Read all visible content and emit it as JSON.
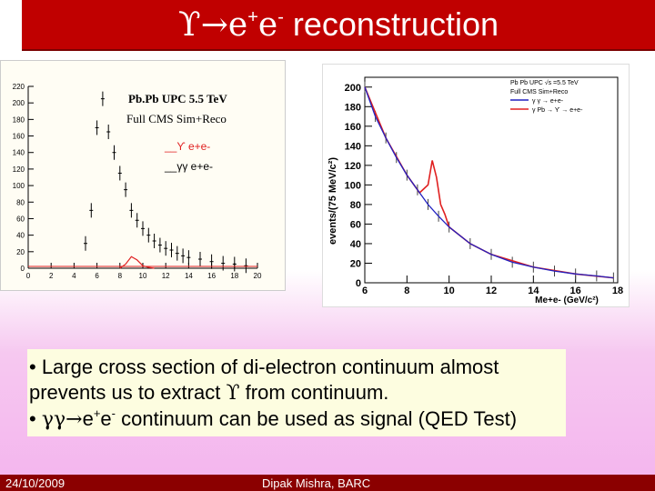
{
  "slide": {
    "title": {
      "symbol_upsilon": "ϒ",
      "arrow": "→",
      "e_plus_base": "e",
      "e_plus_sup": "+",
      "e_minus_base": "e",
      "e_minus_sup": "-",
      "word": "reconstruction"
    },
    "bullets": {
      "line1": "• Large cross section of di-electron continuum almost",
      "line2_pre": "prevents us to extract ",
      "line2_sym": "ϒ",
      "line2_post": " from continuum.",
      "line3_bullet": "• ",
      "line3_gg": "γγ",
      "line3_arrow": "→",
      "line3_e1": "e",
      "line3_sup1": "+",
      "line3_e2": "e",
      "line3_sup2": "-",
      "line3_post": " continuum can be used as signal (QED Test)"
    },
    "footer": {
      "date": "24/10/2009",
      "author": "Dipak Mishra, BARC"
    },
    "colors": {
      "title_bar": "#c00000",
      "footer_bar": "#8b0000",
      "upsilon_curve": "#e02020",
      "gg_curve": "#2020c0"
    }
  },
  "chart_data": [
    {
      "type": "bar",
      "title": "Pb.Pb UPC 5.5 TeV",
      "subtitle": "Full CMS Sim+Reco",
      "legend": [
        "__ϒ e+e-",
        "__γγ e+e-"
      ],
      "xlim": [
        0,
        20
      ],
      "ylim": [
        0,
        220
      ],
      "xticks": [
        0,
        2,
        4,
        6,
        8,
        10,
        12,
        14,
        16,
        18,
        20
      ],
      "yticks": [
        0,
        20,
        40,
        60,
        80,
        100,
        120,
        140,
        160,
        180,
        200,
        220
      ],
      "series": [
        {
          "name": "γγ e+e-",
          "x": [
            5,
            5.5,
            6,
            6.5,
            7,
            7.5,
            8,
            8.5,
            9,
            9.5,
            10,
            10.5,
            11,
            11.5,
            12,
            12.5,
            13,
            13.5,
            14,
            15,
            16,
            17,
            18,
            19
          ],
          "values": [
            30,
            70,
            170,
            205,
            165,
            140,
            115,
            95,
            70,
            58,
            48,
            40,
            33,
            28,
            24,
            22,
            18,
            15,
            13,
            11,
            8,
            6,
            5,
            3
          ]
        },
        {
          "name": "ϒ e+e-",
          "x": [
            8,
            8.5,
            9,
            9.5,
            10,
            10.5,
            11
          ],
          "values": [
            0,
            5,
            14,
            10,
            3,
            1,
            0
          ]
        }
      ]
    },
    {
      "type": "line",
      "legend": [
        "Pb Pb UPC √s =5.5 TeV",
        "Full CMS Sim+Reco",
        "γ γ → e+e-",
        "γ Pb → ϒ → e+e-"
      ],
      "ylabel": "events/(75 MeV/c²)",
      "xlabel": "Me+e- (GeV/c²)",
      "xlim": [
        6,
        18
      ],
      "ylim": [
        0,
        210
      ],
      "xticks": [
        6,
        8,
        10,
        12,
        14,
        16,
        18
      ],
      "yticks": [
        0,
        20,
        40,
        60,
        80,
        100,
        120,
        140,
        160,
        180,
        200
      ],
      "series": [
        {
          "name": "γ γ → e+e-",
          "x": [
            6,
            6.5,
            7,
            7.5,
            8,
            8.5,
            9,
            9.5,
            10,
            11,
            12,
            13,
            14,
            15,
            16,
            17,
            17.8
          ],
          "values": [
            200,
            170,
            148,
            128,
            110,
            95,
            80,
            68,
            57,
            40,
            29,
            21,
            16,
            12,
            9,
            7,
            5
          ]
        },
        {
          "name": "γ Pb → ϒ → e+e-",
          "x": [
            6,
            7,
            8,
            8.6,
            9,
            9.2,
            9.4,
            9.6,
            9.8,
            10,
            11,
            12,
            14,
            16,
            17.8
          ],
          "values": [
            200,
            148,
            110,
            92,
            100,
            125,
            108,
            80,
            70,
            57,
            40,
            29,
            16,
            9,
            5
          ]
        }
      ]
    }
  ]
}
